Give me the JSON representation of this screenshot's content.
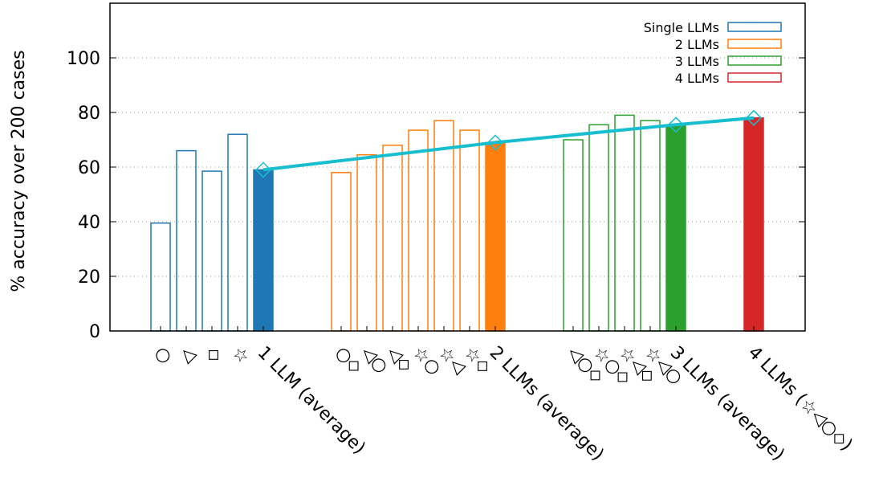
{
  "chart_data": {
    "type": "bar",
    "ylabel": "% accuracy over 200 cases",
    "xlabel": "",
    "ylim": [
      0,
      120
    ],
    "yticks": [
      0,
      20,
      40,
      60,
      80,
      100
    ],
    "grid": "horizontal dotted",
    "legend_placement": "top-right",
    "colors": {
      "single": "#1f77b4",
      "two": "#ff7f0e",
      "three": "#2ca02c",
      "four": "#d62728",
      "average_line": "#17becf"
    },
    "legend": [
      {
        "label": "Single LLMs",
        "group": "single"
      },
      {
        "label": "2 LLMs",
        "group": "two"
      },
      {
        "label": "3 LLMs",
        "group": "three"
      },
      {
        "label": "4 LLMs",
        "group": "four"
      }
    ],
    "bars": [
      {
        "label": "○",
        "value": 39.5,
        "group": "single",
        "filled": false
      },
      {
        "label": "◁",
        "value": 66,
        "group": "single",
        "filled": false
      },
      {
        "label": "◇",
        "value": 58.5,
        "group": "single",
        "filled": false
      },
      {
        "label": "☆",
        "value": 72,
        "group": "single",
        "filled": false
      },
      {
        "label": "1 LLM (average)",
        "value": 59,
        "group": "single",
        "filled": true
      },
      {
        "label": "○◇",
        "value": 58,
        "group": "two",
        "filled": false
      },
      {
        "label": "◁○",
        "value": 64.5,
        "group": "two",
        "filled": false
      },
      {
        "label": "◁◇",
        "value": 68,
        "group": "two",
        "filled": false
      },
      {
        "label": "☆○",
        "value": 73.5,
        "group": "two",
        "filled": false
      },
      {
        "label": "☆◁",
        "value": 77,
        "group": "two",
        "filled": false
      },
      {
        "label": "☆◇",
        "value": 73.5,
        "group": "two",
        "filled": false
      },
      {
        "label": "2 LLMs (average)",
        "value": 69,
        "group": "two",
        "filled": true
      },
      {
        "label": "◁○◇",
        "value": 70,
        "group": "three",
        "filled": false
      },
      {
        "label": "☆○◇",
        "value": 75.5,
        "group": "three",
        "filled": false
      },
      {
        "label": "☆◁◇",
        "value": 79,
        "group": "three",
        "filled": false
      },
      {
        "label": "☆◁○",
        "value": 77,
        "group": "three",
        "filled": false
      },
      {
        "label": "3 LLMs (average)",
        "value": 75.5,
        "group": "three",
        "filled": true
      },
      {
        "label": "4 LLMs (☆◁○◇)",
        "value": 78,
        "group": "four",
        "filled": true
      }
    ],
    "average_line": [
      {
        "label": "1 LLM (average)",
        "value": 59
      },
      {
        "label": "2 LLMs (average)",
        "value": 69
      },
      {
        "label": "3 LLMs (average)",
        "value": 75.5
      },
      {
        "label": "4 LLMs (☆◁○◇)",
        "value": 78
      }
    ]
  }
}
